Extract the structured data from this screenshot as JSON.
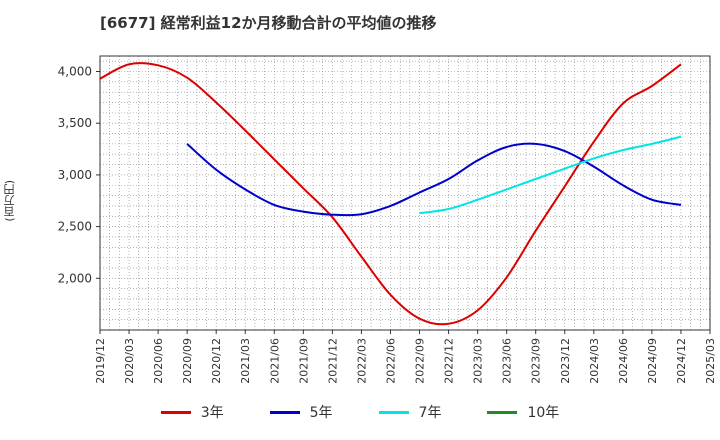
{
  "chart_data": {
    "type": "line",
    "title": "[6677]  経常利益12か月移動合計の平均値の推移",
    "ylabel": "(百万円)",
    "xlabel": "",
    "ylim": [
      1500,
      4150
    ],
    "yticks": [
      2000,
      2500,
      3000,
      3500,
      4000
    ],
    "ytick_labels": [
      "2,000",
      "2,500",
      "3,000",
      "3,500",
      "4,000"
    ],
    "x_tick_labels": [
      "2019/12",
      "2020/03",
      "2020/06",
      "2020/09",
      "2020/12",
      "2021/03",
      "2021/06",
      "2021/09",
      "2021/12",
      "2022/03",
      "2022/06",
      "2022/09",
      "2022/12",
      "2023/03",
      "2023/06",
      "2023/09",
      "2023/12",
      "2024/03",
      "2024/06",
      "2024/09",
      "2024/12",
      "2025/03"
    ],
    "grid": true,
    "legend_position": "bottom",
    "series": [
      {
        "name": "3年",
        "color": "#dd0000",
        "x": [
          "2019/12",
          "2020/03",
          "2020/06",
          "2020/09",
          "2020/12",
          "2021/03",
          "2021/06",
          "2021/09",
          "2021/12",
          "2022/03",
          "2022/06",
          "2022/09",
          "2022/12",
          "2023/03",
          "2023/06",
          "2023/09",
          "2023/12",
          "2024/03",
          "2024/06",
          "2024/09",
          "2024/12"
        ],
        "values": [
          3930,
          4070,
          4060,
          3940,
          3700,
          3430,
          3150,
          2870,
          2590,
          2210,
          1840,
          1610,
          1560,
          1690,
          2010,
          2460,
          2890,
          3320,
          3690,
          3860,
          4070
        ]
      },
      {
        "name": "5年",
        "color": "#0000cc",
        "x": [
          "2020/09",
          "2020/12",
          "2021/03",
          "2021/06",
          "2021/09",
          "2021/12",
          "2022/03",
          "2022/06",
          "2022/09",
          "2022/12",
          "2023/03",
          "2023/06",
          "2023/09",
          "2023/12",
          "2024/03",
          "2024/06",
          "2024/09",
          "2024/12"
        ],
        "values": [
          3300,
          3050,
          2860,
          2710,
          2645,
          2615,
          2620,
          2700,
          2830,
          2960,
          3140,
          3270,
          3300,
          3230,
          3080,
          2900,
          2760,
          2710
        ]
      },
      {
        "name": "7年",
        "color": "#00e5e5",
        "x": [
          "2022/09",
          "2022/12",
          "2023/03",
          "2023/06",
          "2023/09",
          "2023/12",
          "2024/03",
          "2024/06",
          "2024/09",
          "2024/12"
        ],
        "values": [
          2630,
          2670,
          2760,
          2860,
          2960,
          3060,
          3160,
          3240,
          3300,
          3370
        ]
      },
      {
        "name": "10年",
        "color": "#228b22",
        "x": [],
        "values": []
      }
    ]
  }
}
